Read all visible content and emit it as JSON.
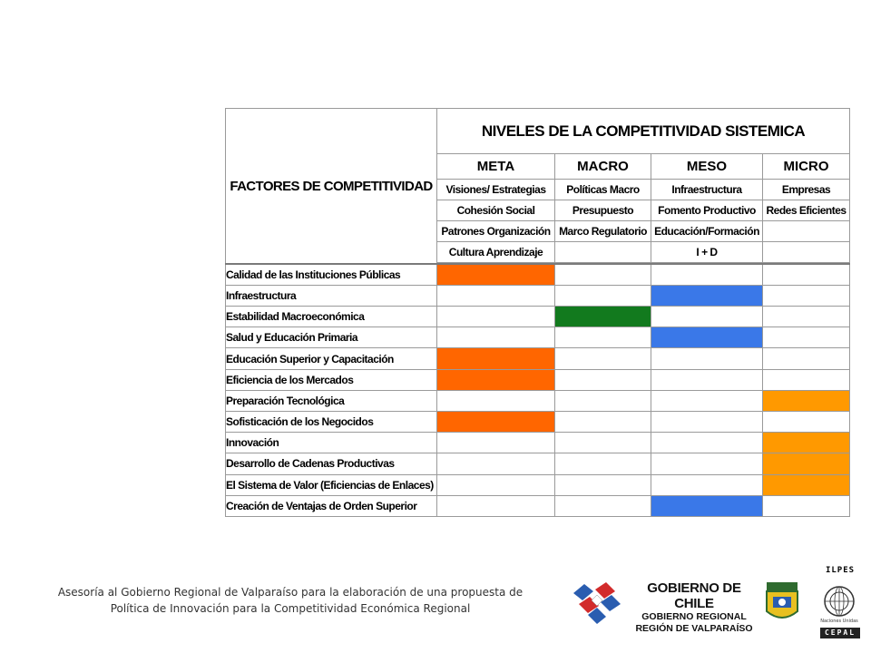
{
  "table": {
    "factors_header": "FACTORES DE COMPETITIVIDAD",
    "title": "NIVELES DE LA COMPETITIVIDAD SISTEMICA",
    "levels": [
      "META",
      "MACRO",
      "MESO",
      "MICRO"
    ],
    "sub_rows": [
      [
        "Visiones/ Estrategias",
        "Políticas Macro",
        "Infraestructura",
        "Empresas"
      ],
      [
        "Cohesión Social",
        "Presupuesto",
        "Fomento Productivo",
        "Redes Eficientes"
      ],
      [
        "Patrones Organización",
        "Marco Regulatorio",
        "Educación/Formación",
        ""
      ],
      [
        "Cultura Aprendizaje",
        "",
        "I + D",
        ""
      ]
    ],
    "factors": [
      "Calidad de las Instituciones Públicas",
      "Infraestructura",
      "Estabilidad Macroeconómica",
      "Salud y Educación Primaria",
      "Educación Superior y Capacitación",
      "Eficiencia de los Mercados",
      "Preparación Tecnológica",
      "Sofisticación de los Negocidos",
      "Innovación",
      "Desarrollo de Cadenas Productivas",
      "El Sistema de Valor (Eficiencias de Enlaces)",
      "Creación de Ventajas de Orden Superior"
    ],
    "marks": [
      [
        "META"
      ],
      [
        "MESO"
      ],
      [
        "MACRO"
      ],
      [
        "MESO"
      ],
      [
        "META"
      ],
      [
        "META"
      ],
      [
        "MICRO"
      ],
      [
        "META"
      ],
      [
        "MICRO"
      ],
      [
        "MICRO"
      ],
      [
        "MICRO"
      ],
      [
        "MESO"
      ]
    ],
    "level_colors": {
      "META": "#ff6600",
      "MACRO": "#127a1e",
      "MESO": "#3a78e8",
      "MICRO": "#ff9900"
    },
    "title_color": "#1f3fb0"
  },
  "footer": {
    "line1": "Asesoría al Gobierno Regional de Valparaíso para la elaboración de una propuesta de",
    "line2": "Política de Innovación para la Competitividad Económica Regional"
  },
  "logos": {
    "gobierno": "GOBIERNO DE CHILE",
    "gobierno_sub1": "GOBIERNO REGIONAL",
    "gobierno_sub2": "REGIÓN DE VALPARAÍSO",
    "ilpes": "ILPES",
    "un_caption": "Naciones Unidas",
    "cepal": "CEPAL"
  }
}
